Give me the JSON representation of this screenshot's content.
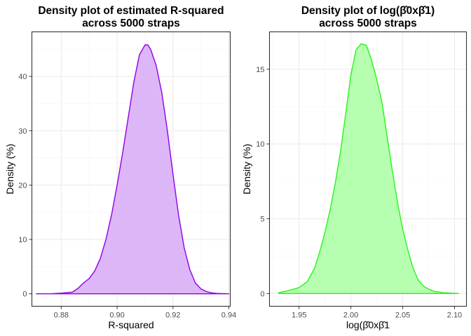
{
  "chart_data": [
    {
      "type": "area",
      "title_lines": [
        "Density plot of estimated R-squared",
        "across 5000 straps"
      ],
      "xlabel": "R-squared",
      "ylabel": "Density (%)",
      "xlim": [
        0.8695,
        0.9405
      ],
      "ylim": [
        -2.3,
        48.2
      ],
      "x_ticks": [
        0.88,
        0.9,
        0.92,
        0.94
      ],
      "x_tick_labels": [
        "0.88",
        "0.90",
        "0.92",
        "0.94"
      ],
      "y_ticks": [
        0,
        10,
        20,
        30,
        40
      ],
      "y_tick_labels": [
        "0",
        "10",
        "20",
        "30",
        "40"
      ],
      "grid": true,
      "fill_color": "#dcb6f6",
      "line_color": "#9100e6",
      "x": [
        0.871,
        0.876,
        0.88,
        0.884,
        0.886,
        0.888,
        0.89,
        0.892,
        0.894,
        0.896,
        0.898,
        0.9,
        0.902,
        0.904,
        0.906,
        0.908,
        0.91,
        0.911,
        0.912,
        0.914,
        0.916,
        0.918,
        0.92,
        0.922,
        0.924,
        0.926,
        0.928,
        0.93,
        0.932,
        0.934,
        0.936,
        0.938,
        0.94
      ],
      "y": [
        0.0,
        0.0,
        0.1,
        0.3,
        1.0,
        2.0,
        2.8,
        4.2,
        6.5,
        10.0,
        14.5,
        20.0,
        26.0,
        32.5,
        39.0,
        44.0,
        45.8,
        45.8,
        45.0,
        42.0,
        37.0,
        30.0,
        22.0,
        14.5,
        8.5,
        4.5,
        2.0,
        0.9,
        0.4,
        0.15,
        0.05,
        0.02,
        0.0
      ]
    },
    {
      "type": "area",
      "title_lines": [
        "Density plot of log(β̂0xβ̂1)",
        "across 5000 straps"
      ],
      "xlabel": "log(β̂0xβ̂1",
      "ylabel": "Density (%)",
      "xlim": [
        1.9215,
        2.1115
      ],
      "ylim": [
        -0.85,
        17.5
      ],
      "x_ticks": [
        1.95,
        2.0,
        2.05,
        2.1
      ],
      "x_tick_labels": [
        "1.95",
        "2.00",
        "2.05",
        "2.10"
      ],
      "y_ticks": [
        0,
        5,
        10,
        15
      ],
      "y_tick_labels": [
        "0",
        "5",
        "10",
        "15"
      ],
      "grid": true,
      "fill_color": "#b6ffb0",
      "line_color": "#26f51b",
      "x": [
        1.93,
        1.94,
        1.95,
        1.958,
        1.965,
        1.97,
        1.975,
        1.98,
        1.985,
        1.99,
        1.995,
        2.0,
        2.005,
        2.01,
        2.015,
        2.02,
        2.025,
        2.03,
        2.035,
        2.04,
        2.045,
        2.05,
        2.055,
        2.06,
        2.065,
        2.07,
        2.075,
        2.08,
        2.09,
        2.1,
        2.104
      ],
      "y": [
        0.05,
        0.2,
        0.4,
        0.8,
        1.7,
        2.8,
        4.1,
        5.6,
        7.4,
        9.5,
        12.0,
        14.6,
        16.3,
        16.7,
        16.6,
        15.6,
        14.3,
        12.8,
        10.5,
        8.2,
        6.1,
        4.3,
        2.9,
        1.7,
        0.9,
        0.5,
        0.3,
        0.15,
        0.05,
        0.02,
        0.0
      ]
    }
  ]
}
